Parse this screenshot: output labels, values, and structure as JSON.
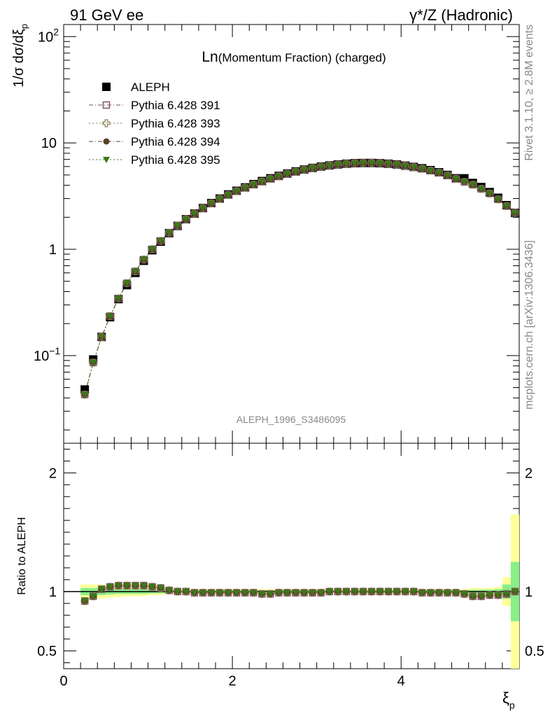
{
  "header": {
    "left": "91 GeV ee",
    "right": "γ*/Z (Hadronic)"
  },
  "title": {
    "prefix": "Ln",
    "rest": "(Momentum Fraction) (charged)"
  },
  "side_labels": {
    "rivet": "Rivet 3.1.10, ≥ 2.8M events",
    "mcplots": "mcplots.cern.ch [arXiv:1306.3436]"
  },
  "analysis_id": "ALEPH_1996_S3486095",
  "colors": {
    "data": "#000000",
    "s391": "#7a4a60",
    "s393": "#8a7a50",
    "s394": "#5a4028",
    "s395": "#3a7a18",
    "band_yellow": "#ffff99",
    "band_green": "#88ee88"
  },
  "chart_data": [
    {
      "type": "scatter",
      "panel": "main",
      "ylabel": "1/σ dσ/dξ",
      "ylabel_sub": "p",
      "yscale": "log",
      "ylim": [
        0.015,
        130
      ],
      "xlim": [
        0,
        5.4
      ],
      "y_ticks": [
        {
          "value": 0.1,
          "base": "10",
          "exp": "−1"
        },
        {
          "value": 1,
          "base": "1",
          "exp": ""
        },
        {
          "value": 10,
          "base": "10",
          "exp": ""
        },
        {
          "value": 100,
          "base": "10",
          "exp": "2"
        }
      ],
      "x": [
        0.25,
        0.35,
        0.45,
        0.55,
        0.65,
        0.75,
        0.85,
        0.95,
        1.05,
        1.15,
        1.25,
        1.35,
        1.45,
        1.55,
        1.65,
        1.75,
        1.85,
        1.95,
        2.05,
        2.15,
        2.25,
        2.35,
        2.45,
        2.55,
        2.65,
        2.75,
        2.85,
        2.95,
        3.05,
        3.15,
        3.25,
        3.35,
        3.45,
        3.55,
        3.65,
        3.75,
        3.85,
        3.95,
        4.05,
        4.15,
        4.25,
        4.35,
        4.45,
        4.55,
        4.65,
        4.75,
        4.85,
        4.95,
        5.05,
        5.15,
        5.25,
        5.35
      ],
      "series": [
        {
          "name": "ALEPH",
          "marker": "filled-square",
          "values": [
            0.048,
            0.092,
            0.15,
            0.23,
            0.34,
            0.46,
            0.6,
            0.78,
            0.98,
            1.18,
            1.42,
            1.66,
            1.92,
            2.17,
            2.44,
            2.72,
            3.0,
            3.28,
            3.55,
            3.82,
            4.1,
            4.38,
            4.65,
            4.9,
            5.15,
            5.4,
            5.62,
            5.82,
            6.0,
            6.15,
            6.28,
            6.38,
            6.45,
            6.48,
            6.48,
            6.45,
            6.38,
            6.28,
            6.12,
            5.95,
            5.78,
            5.55,
            5.3,
            5.0,
            4.65,
            4.65,
            4.2,
            3.85,
            3.45,
            3.05,
            2.6,
            2.2
          ]
        },
        {
          "name": "Pythia 6.428 391",
          "marker": "open-square",
          "style": "dash-dot",
          "values": [
            0.043,
            0.086,
            0.15,
            0.235,
            0.345,
            0.48,
            0.62,
            0.8,
            1.0,
            1.2,
            1.43,
            1.67,
            1.92,
            2.17,
            2.43,
            2.7,
            2.98,
            3.25,
            3.52,
            3.79,
            4.06,
            4.33,
            4.6,
            4.86,
            5.12,
            5.37,
            5.6,
            5.8,
            5.98,
            6.14,
            6.27,
            6.37,
            6.44,
            6.48,
            6.48,
            6.45,
            6.38,
            6.27,
            6.1,
            5.92,
            5.72,
            5.5,
            5.25,
            4.95,
            4.6,
            4.3,
            4.05,
            3.7,
            3.35,
            2.95,
            2.55,
            2.2
          ]
        },
        {
          "name": "Pythia 6.428 393",
          "marker": "open-cross",
          "style": "dotted",
          "values": [
            0.043,
            0.086,
            0.15,
            0.235,
            0.345,
            0.48,
            0.62,
            0.8,
            1.0,
            1.2,
            1.43,
            1.67,
            1.92,
            2.17,
            2.43,
            2.7,
            2.98,
            3.25,
            3.52,
            3.79,
            4.06,
            4.33,
            4.6,
            4.86,
            5.12,
            5.37,
            5.6,
            5.8,
            5.98,
            6.14,
            6.27,
            6.37,
            6.44,
            6.48,
            6.48,
            6.45,
            6.38,
            6.27,
            6.1,
            5.92,
            5.72,
            5.5,
            5.25,
            4.95,
            4.6,
            4.3,
            4.05,
            3.7,
            3.35,
            2.95,
            2.55,
            2.2
          ]
        },
        {
          "name": "Pythia 6.428 394",
          "marker": "filled-circle",
          "style": "dash-dot",
          "values": [
            0.043,
            0.086,
            0.15,
            0.235,
            0.345,
            0.48,
            0.62,
            0.8,
            1.0,
            1.2,
            1.43,
            1.67,
            1.92,
            2.17,
            2.43,
            2.7,
            2.98,
            3.25,
            3.52,
            3.79,
            4.06,
            4.33,
            4.6,
            4.86,
            5.12,
            5.37,
            5.6,
            5.8,
            5.98,
            6.14,
            6.27,
            6.37,
            6.44,
            6.48,
            6.48,
            6.45,
            6.38,
            6.27,
            6.1,
            5.92,
            5.72,
            5.5,
            5.25,
            4.95,
            4.6,
            4.3,
            4.05,
            3.7,
            3.35,
            2.95,
            2.55,
            2.2
          ]
        },
        {
          "name": "Pythia 6.428 395",
          "marker": "filled-triangle-down",
          "style": "dotted",
          "values": [
            0.043,
            0.086,
            0.15,
            0.235,
            0.345,
            0.48,
            0.62,
            0.8,
            1.0,
            1.2,
            1.43,
            1.67,
            1.92,
            2.17,
            2.43,
            2.7,
            2.98,
            3.25,
            3.52,
            3.79,
            4.06,
            4.33,
            4.6,
            4.86,
            5.12,
            5.37,
            5.6,
            5.8,
            5.98,
            6.14,
            6.27,
            6.37,
            6.44,
            6.48,
            6.48,
            6.45,
            6.38,
            6.27,
            6.1,
            5.92,
            5.72,
            5.5,
            5.25,
            4.95,
            4.6,
            4.3,
            4.05,
            3.7,
            3.35,
            2.95,
            2.55,
            2.2
          ]
        }
      ]
    },
    {
      "type": "scatter",
      "panel": "ratio",
      "ylabel": "Ratio to ALEPH",
      "xlabel": "ξ",
      "xlabel_sub": "p",
      "ylim": [
        0.35,
        2.25
      ],
      "xlim": [
        0,
        5.4
      ],
      "y_ticks": [
        0.5,
        1,
        2
      ],
      "y_tick_labels": [
        "0.5",
        "1",
        "2"
      ],
      "x_ticks": [
        0,
        2,
        4
      ],
      "x_tick_labels": [
        "0",
        "2",
        "4"
      ],
      "x": [
        0.25,
        0.35,
        0.45,
        0.55,
        0.65,
        0.75,
        0.85,
        0.95,
        1.05,
        1.15,
        1.25,
        1.35,
        1.45,
        1.55,
        1.65,
        1.75,
        1.85,
        1.95,
        2.05,
        2.15,
        2.25,
        2.35,
        2.45,
        2.55,
        2.65,
        2.75,
        2.85,
        2.95,
        3.05,
        3.15,
        3.25,
        3.35,
        3.45,
        3.55,
        3.65,
        3.75,
        3.85,
        3.95,
        4.05,
        4.15,
        4.25,
        4.35,
        4.45,
        4.55,
        4.65,
        4.75,
        4.85,
        4.95,
        5.05,
        5.15,
        5.25,
        5.35
      ],
      "ratio": [
        0.92,
        0.96,
        1.02,
        1.04,
        1.05,
        1.05,
        1.05,
        1.05,
        1.04,
        1.03,
        1.01,
        1.0,
        1.0,
        0.99,
        0.99,
        0.99,
        0.99,
        0.99,
        0.99,
        0.99,
        0.99,
        0.98,
        0.98,
        0.99,
        0.99,
        0.99,
        0.99,
        0.99,
        0.99,
        1.0,
        1.0,
        1.0,
        1.0,
        1.0,
        1.0,
        1.0,
        1.0,
        1.0,
        1.0,
        1.0,
        0.99,
        0.99,
        0.99,
        0.99,
        0.99,
        0.98,
        0.96,
        0.96,
        0.97,
        0.97,
        0.98,
        1.0
      ],
      "band_green": [
        0.03,
        0.03,
        0.03,
        0.025,
        0.02,
        0.02,
        0.02,
        0.02,
        0.015,
        0.015,
        0.01,
        0.01,
        0.01,
        0.01,
        0.01,
        0.01,
        0.01,
        0.01,
        0.01,
        0.01,
        0.01,
        0.01,
        0.01,
        0.01,
        0.01,
        0.01,
        0.01,
        0.01,
        0.01,
        0.01,
        0.01,
        0.01,
        0.01,
        0.01,
        0.01,
        0.01,
        0.01,
        0.01,
        0.01,
        0.01,
        0.01,
        0.01,
        0.01,
        0.01,
        0.01,
        0.01,
        0.015,
        0.015,
        0.015,
        0.02,
        0.06,
        0.25
      ],
      "band_yellow": [
        0.06,
        0.06,
        0.06,
        0.05,
        0.045,
        0.04,
        0.04,
        0.04,
        0.03,
        0.03,
        0.02,
        0.02,
        0.02,
        0.02,
        0.02,
        0.02,
        0.02,
        0.02,
        0.02,
        0.02,
        0.02,
        0.02,
        0.02,
        0.02,
        0.02,
        0.02,
        0.02,
        0.02,
        0.02,
        0.02,
        0.02,
        0.02,
        0.02,
        0.02,
        0.02,
        0.02,
        0.02,
        0.02,
        0.02,
        0.02,
        0.02,
        0.02,
        0.02,
        0.02,
        0.02,
        0.02,
        0.03,
        0.03,
        0.03,
        0.04,
        0.12,
        0.65
      ]
    }
  ]
}
